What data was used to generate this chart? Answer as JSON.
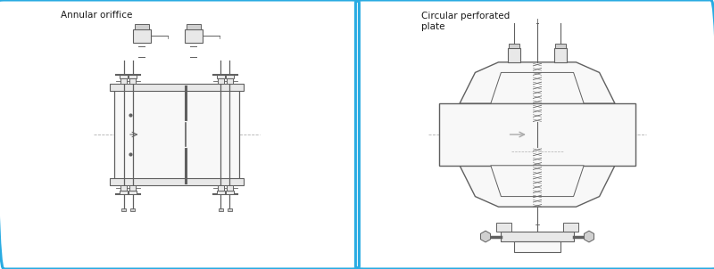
{
  "title_left": "Annular oriffice",
  "title_right": "Circular perforated\nplate",
  "bg_color": "#ffffff",
  "border_color": "#29abe2",
  "line_color": "#606060",
  "light_line_color": "#b0b0b0",
  "fill_light": "#f8f8f8",
  "fill_mid": "#e8e8e8",
  "fill_dark": "#d0d0d0"
}
